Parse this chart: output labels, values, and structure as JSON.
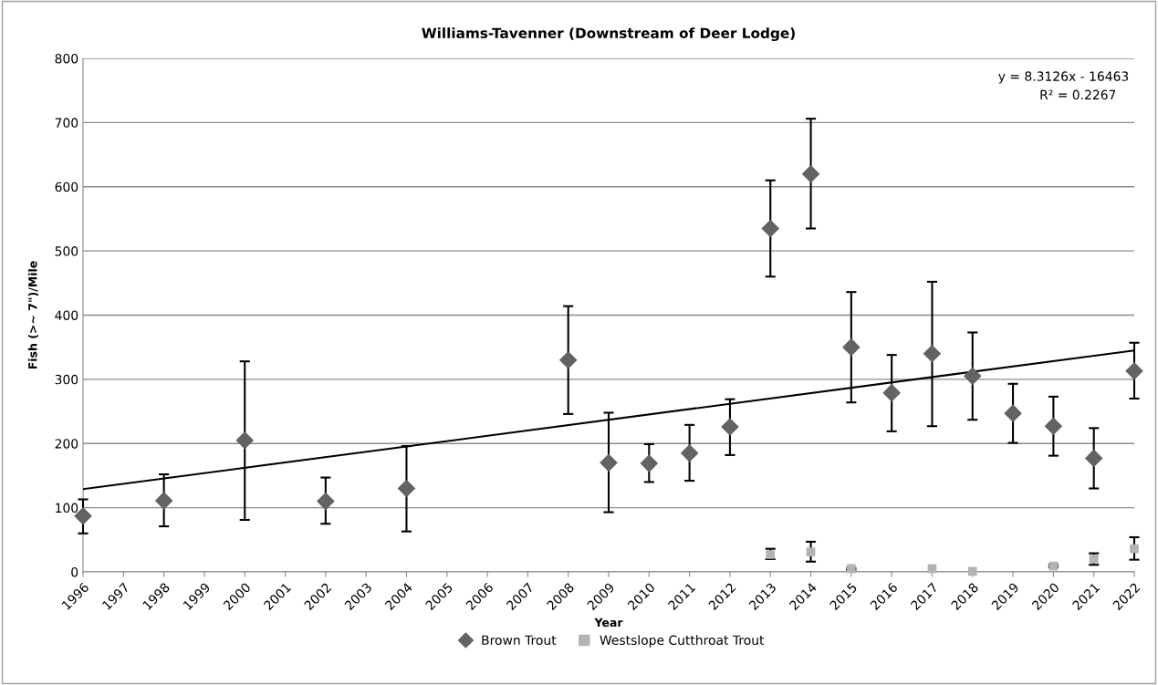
{
  "chart_data": {
    "type": "scatter",
    "title": "Williams-Tavenner (Downstream of Deer Lodge)",
    "xlabel": "Year",
    "ylabel": "Fish (>~ 7\")/Mile",
    "x": [
      1996,
      1997,
      1998,
      1999,
      2000,
      2001,
      2002,
      2003,
      2004,
      2005,
      2006,
      2007,
      2008,
      2009,
      2010,
      2011,
      2012,
      2013,
      2014,
      2015,
      2016,
      2017,
      2018,
      2019,
      2020,
      2021,
      2022
    ],
    "series": [
      {
        "name": "Brown Trout",
        "color": "#636363",
        "marker": "diamond",
        "values": [
          87,
          null,
          111,
          null,
          205,
          null,
          110,
          null,
          130,
          null,
          null,
          null,
          330,
          170,
          169,
          185,
          226,
          535,
          620,
          350,
          279,
          340,
          305,
          247,
          227,
          177,
          313
        ],
        "errors": [
          [
            60,
            113
          ],
          null,
          [
            71,
            152
          ],
          null,
          [
            81,
            328
          ],
          null,
          [
            75,
            147
          ],
          null,
          [
            63,
            196
          ],
          null,
          null,
          null,
          [
            246,
            414
          ],
          [
            93,
            248
          ],
          [
            140,
            199
          ],
          [
            142,
            229
          ],
          [
            182,
            269
          ],
          [
            460,
            610
          ],
          [
            535,
            706
          ],
          [
            264,
            436
          ],
          [
            219,
            338
          ],
          [
            227,
            452
          ],
          [
            237,
            373
          ],
          [
            201,
            293
          ],
          [
            181,
            273
          ],
          [
            130,
            224
          ],
          [
            270,
            357
          ]
        ]
      },
      {
        "name": "Westslope Cutthroat Trout",
        "color": "#b4b4b4",
        "marker": "square",
        "values": [
          null,
          null,
          null,
          null,
          null,
          null,
          null,
          null,
          null,
          null,
          null,
          null,
          null,
          null,
          null,
          null,
          null,
          27,
          31,
          5,
          null,
          5,
          1,
          null,
          9,
          20,
          36
        ],
        "errors": [
          null,
          null,
          null,
          null,
          null,
          null,
          null,
          null,
          null,
          null,
          null,
          null,
          null,
          null,
          null,
          null,
          null,
          [
            20,
            36
          ],
          [
            16,
            47
          ],
          [
            3,
            6
          ],
          null,
          null,
          null,
          null,
          [
            7,
            11
          ],
          [
            11,
            29
          ],
          [
            19,
            54
          ]
        ]
      },
      {
        "type": "line",
        "color": "#000000",
        "x": [
          1996,
          2022
        ],
        "values": [
          129,
          345
        ]
      }
    ],
    "xlim": [
      1996,
      2022
    ],
    "xticks": [
      1996,
      1997,
      1998,
      1999,
      2000,
      2001,
      2002,
      2003,
      2004,
      2005,
      2006,
      2007,
      2008,
      2009,
      2010,
      2011,
      2012,
      2013,
      2014,
      2015,
      2016,
      2017,
      2018,
      2019,
      2020,
      2021,
      2022
    ],
    "ylim": [
      0,
      800
    ],
    "yticks": [
      0,
      100,
      200,
      300,
      400,
      500,
      600,
      700,
      800
    ],
    "grid": "y",
    "legend": "bottom",
    "annotations": [
      "y = 8.3126x - 16463",
      "R² = 0.2267"
    ]
  }
}
